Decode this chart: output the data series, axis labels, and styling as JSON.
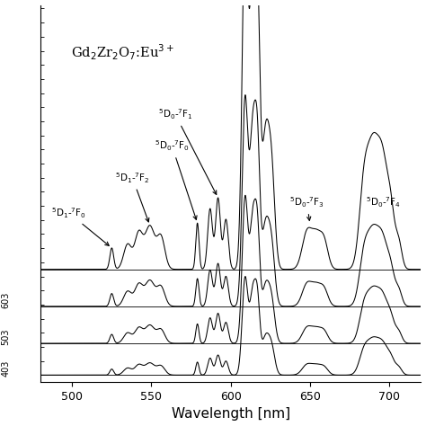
{
  "xlabel": "Wavelength [nm]",
  "xlim": [
    480,
    720
  ],
  "background_color": "#ffffff",
  "temperatures": [
    "403",
    "503",
    "603"
  ],
  "line_color": "#000000",
  "num_spectra": 4,
  "offsets": [
    0.0,
    0.09,
    0.195,
    0.3
  ],
  "scales": [
    0.28,
    0.42,
    0.6,
    1.0
  ],
  "ylim": [
    -0.02,
    1.05
  ]
}
